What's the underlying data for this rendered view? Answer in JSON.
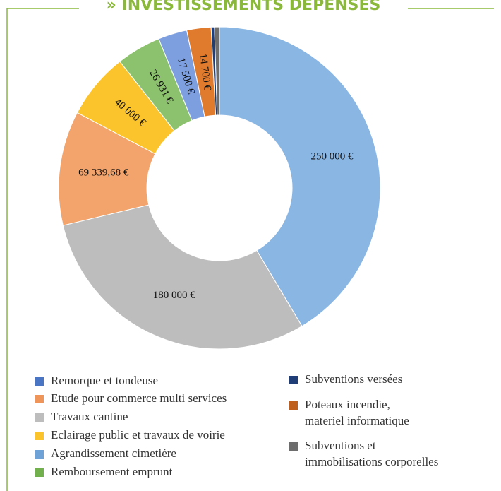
{
  "chart_data": {
    "type": "donut",
    "title": "» INVESTISSEMENTS DÉPENSÉS",
    "categories": [
      "Agrandissement cimetiére",
      "Travaux cantine",
      "Etude pour commerce multi services",
      "Eclairage public et travaux de voirie",
      "Remboursement emprunt",
      "Remorque et tondeuse",
      "Poteaux incendie, materiel informatique",
      "Subventions versées",
      "Subventions et immobilisations corporelles"
    ],
    "values": [
      250000,
      180000,
      69339.68,
      40000,
      26931,
      17500,
      14700,
      2000,
      3000
    ],
    "value_labels": [
      "250 000 €",
      "180 000 €",
      "69 339,68 €",
      "40 000 €",
      "26 931 €",
      "17 500 €",
      "14 700 €",
      null,
      null
    ],
    "colors": [
      "#8ab6e4",
      "#bdbdbd",
      "#f2a46c",
      "#fcc42c",
      "#8cc26d",
      "#7d9fe0",
      "#e07b2e",
      "#1f3e78",
      "#6d6d6d"
    ],
    "legend_colors": [
      "#6fa3d8",
      "#bdbdbd",
      "#f0955a",
      "#fcc42c",
      "#72b04e",
      "#4a74c4",
      "#c0601f",
      "#1f3e78",
      "#6d6d6d"
    ]
  }
}
